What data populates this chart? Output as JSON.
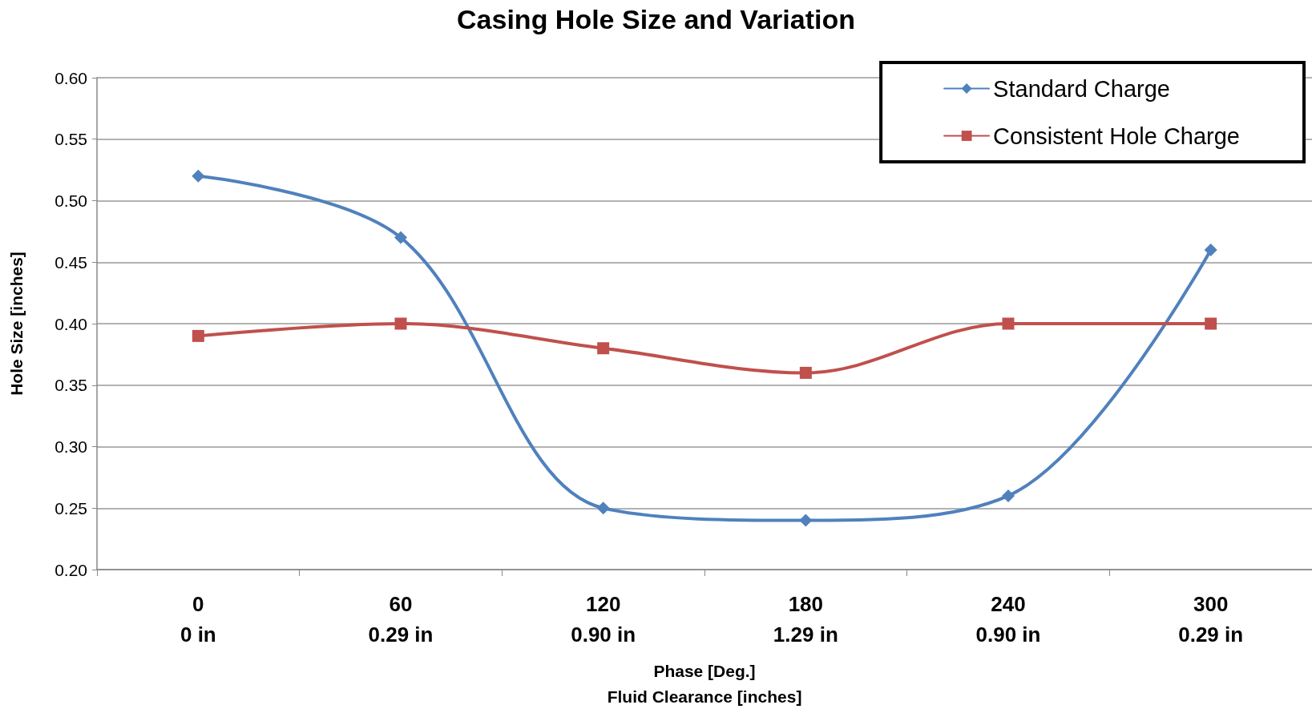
{
  "chart_data": {
    "type": "line",
    "title": "Casing Hole Size and Variation",
    "xlabel": "Phase [Deg.]\nFluid Clearance [inches]",
    "ylabel": "Hole Size [inches]",
    "categories": [
      "0\n0 in",
      "60\n0.29 in",
      "120\n0.90 in",
      "180\n1.29 in",
      "240\n0.90 in",
      "300\n0.29 in"
    ],
    "series": [
      {
        "name": "Standard Charge",
        "color": "#4f81bd",
        "marker": "diamond",
        "values": [
          0.52,
          0.47,
          0.25,
          0.24,
          0.26,
          0.46
        ]
      },
      {
        "name": "Consistent Hole Charge",
        "color": "#c0504d",
        "marker": "square",
        "values": [
          0.39,
          0.4,
          0.38,
          0.36,
          0.4,
          0.4
        ]
      }
    ],
    "ylim": [
      0.2,
      0.6
    ],
    "yticks": [
      {
        "value": 0.2,
        "label": "0.20"
      },
      0.25,
      {
        "value": 0.3,
        "label": "0.30"
      },
      0.35,
      {
        "value": 0.4,
        "label": "0.40"
      },
      0.45,
      {
        "value": 0.5,
        "label": "0.50"
      },
      0.55,
      {
        "value": 0.6,
        "label": "0.60"
      }
    ],
    "grid": "y",
    "legend": "top right",
    "line_style": "solid"
  }
}
